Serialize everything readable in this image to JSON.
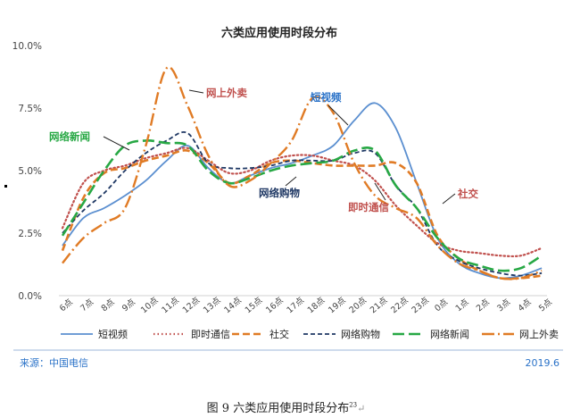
{
  "chart_data": {
    "type": "line",
    "title": "六类应用使用时段分布",
    "categories": [
      "6点",
      "7点",
      "8点",
      "9点",
      "10点",
      "11点",
      "12点",
      "13点",
      "14点",
      "15点",
      "16点",
      "17点",
      "18点",
      "19点",
      "20点",
      "21点",
      "22点",
      "23点",
      "0点",
      "1点",
      "2点",
      "3点",
      "4点",
      "5点"
    ],
    "ylim": [
      0,
      10
    ],
    "y_ticks": [
      "0.0%",
      "2.5%",
      "5.0%",
      "7.5%",
      "10.0%"
    ],
    "grid": false,
    "legend_position": "bottom",
    "series": [
      {
        "name": "短视频",
        "color": "#5b8fd0",
        "style": "solid",
        "values": [
          2.0,
          3.1,
          3.5,
          4.0,
          4.6,
          5.4,
          6.0,
          5.1,
          4.5,
          4.8,
          5.1,
          5.3,
          5.6,
          6.0,
          7.0,
          7.7,
          6.7,
          4.5,
          2.3,
          1.3,
          0.9,
          0.7,
          0.8,
          1.1
        ]
      },
      {
        "name": "即时通信",
        "color": "#c0504d",
        "style": "dotted",
        "values": [
          2.7,
          4.5,
          5.0,
          5.2,
          5.5,
          5.7,
          5.9,
          5.4,
          4.9,
          5.0,
          5.4,
          5.6,
          5.6,
          5.4,
          5.2,
          4.6,
          3.6,
          2.8,
          2.1,
          1.8,
          1.7,
          1.6,
          1.6,
          1.9
        ]
      },
      {
        "name": "社交",
        "color": "#e07b25",
        "style": "dashed",
        "values": [
          1.8,
          3.9,
          4.9,
          5.1,
          5.4,
          5.6,
          5.8,
          5.3,
          4.5,
          4.8,
          5.3,
          5.4,
          5.3,
          5.2,
          5.2,
          5.2,
          5.3,
          4.5,
          2.4,
          1.5,
          1.0,
          0.7,
          0.7,
          0.8
        ]
      },
      {
        "name": "网络购物",
        "color": "#1f3864",
        "style": "dashdense",
        "values": [
          2.5,
          3.4,
          4.1,
          5.0,
          5.7,
          6.2,
          6.5,
          5.3,
          5.1,
          5.1,
          5.2,
          5.4,
          5.4,
          5.4,
          5.7,
          5.7,
          4.4,
          3.5,
          2.0,
          1.4,
          1.1,
          0.9,
          0.8,
          0.9
        ]
      },
      {
        "name": "网络新闻",
        "color": "#27a844",
        "style": "longdash",
        "values": [
          2.4,
          3.7,
          5.0,
          6.0,
          6.2,
          6.1,
          6.0,
          5.0,
          4.5,
          4.7,
          5.0,
          5.2,
          5.3,
          5.4,
          5.8,
          5.8,
          4.4,
          3.5,
          2.3,
          1.5,
          1.2,
          1.0,
          1.1,
          1.6
        ]
      },
      {
        "name": "网上外卖",
        "color": "#e07b25",
        "style": "dashdot",
        "values": [
          1.3,
          2.3,
          2.9,
          3.5,
          6.0,
          9.1,
          7.6,
          5.6,
          4.4,
          4.6,
          5.3,
          6.2,
          7.9,
          7.3,
          5.3,
          4.0,
          3.5,
          3.1,
          2.0,
          1.3,
          1.0,
          0.7,
          0.7,
          1.0
        ]
      }
    ],
    "annotations": [
      {
        "text": "网上外卖",
        "color": "#c0504d",
        "series": "网上外卖"
      },
      {
        "text": "短视频",
        "color": "#2a72c8",
        "series": "短视频"
      },
      {
        "text": "网络新闻",
        "color": "#27a844",
        "series": "网络新闻"
      },
      {
        "text": "网络购物",
        "color": "#1f3864",
        "series": "网络购物"
      },
      {
        "text": "即时通信",
        "color": "#c0504d",
        "series": "即时通信"
      },
      {
        "text": "社交",
        "color": "#c0504d",
        "series": "社交"
      }
    ],
    "source": "来源：中国电信",
    "date": "2019.6"
  },
  "caption": {
    "text": "图  9    六类应用使用时段分布",
    "superscript": "23",
    "mark": "↵"
  },
  "colors": {
    "footer_text": "#2a72c8",
    "axis_text": "#444444",
    "divider": "#9db7d9"
  }
}
